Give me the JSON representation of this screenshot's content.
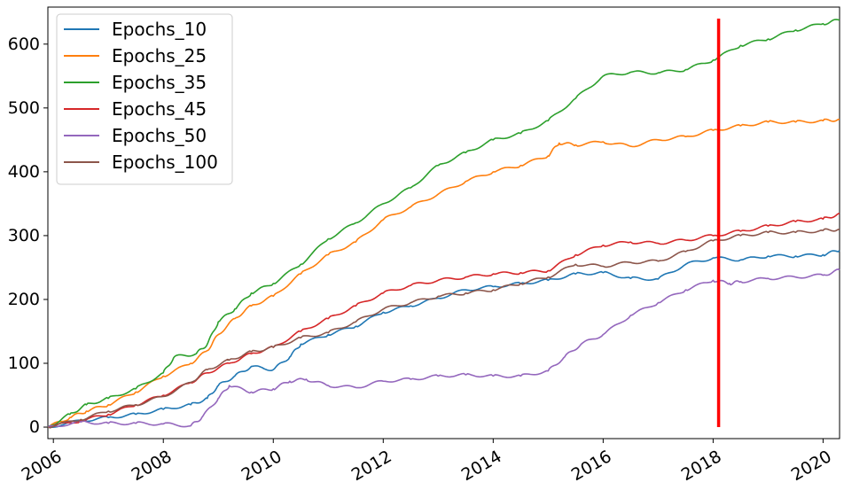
{
  "chart_data": {
    "type": "line",
    "title": "",
    "xlabel": "",
    "ylabel": "",
    "xlim": [
      2005.9,
      2020.3
    ],
    "ylim": [
      -18,
      658
    ],
    "x_ticks": [
      2006,
      2008,
      2010,
      2012,
      2014,
      2016,
      2018,
      2020
    ],
    "x_tick_labels": [
      "2006",
      "2008",
      "2010",
      "2012",
      "2014",
      "2016",
      "2018",
      "2020"
    ],
    "y_ticks": [
      0,
      100,
      200,
      300,
      400,
      500,
      600
    ],
    "y_tick_labels": [
      "0",
      "100",
      "200",
      "300",
      "400",
      "500",
      "600"
    ],
    "grid": false,
    "legend_position": "top-left",
    "series": [
      {
        "name": "Epochs_10",
        "color": "#1f77b4",
        "points": [
          [
            2005.9,
            0
          ],
          [
            2006.5,
            10
          ],
          [
            2007.0,
            15
          ],
          [
            2007.5,
            20
          ],
          [
            2008.0,
            28
          ],
          [
            2008.5,
            35
          ],
          [
            2008.8,
            45
          ],
          [
            2009.0,
            65
          ],
          [
            2009.3,
            80
          ],
          [
            2009.6,
            95
          ],
          [
            2010.0,
            90
          ],
          [
            2010.3,
            110
          ],
          [
            2010.5,
            130
          ],
          [
            2011.0,
            145
          ],
          [
            2011.5,
            158
          ],
          [
            2012.0,
            180
          ],
          [
            2012.5,
            190
          ],
          [
            2013.0,
            202
          ],
          [
            2013.5,
            215
          ],
          [
            2014.0,
            220
          ],
          [
            2014.5,
            225
          ],
          [
            2015.0,
            230
          ],
          [
            2015.5,
            240
          ],
          [
            2016.0,
            242
          ],
          [
            2016.5,
            233
          ],
          [
            2017.0,
            232
          ],
          [
            2017.5,
            255
          ],
          [
            2018.0,
            265
          ],
          [
            2018.5,
            262
          ],
          [
            2019.0,
            268
          ],
          [
            2019.5,
            268
          ],
          [
            2020.0,
            270
          ],
          [
            2020.3,
            277
          ]
        ]
      },
      {
        "name": "Epochs_25",
        "color": "#ff7f0e",
        "points": [
          [
            2005.9,
            0
          ],
          [
            2006.3,
            15
          ],
          [
            2006.6,
            25
          ],
          [
            2007.0,
            35
          ],
          [
            2007.5,
            55
          ],
          [
            2008.0,
            80
          ],
          [
            2008.5,
            100
          ],
          [
            2008.8,
            120
          ],
          [
            2009.0,
            145
          ],
          [
            2009.3,
            170
          ],
          [
            2009.6,
            190
          ],
          [
            2010.0,
            205
          ],
          [
            2010.5,
            240
          ],
          [
            2011.0,
            270
          ],
          [
            2011.5,
            290
          ],
          [
            2012.0,
            325
          ],
          [
            2012.5,
            345
          ],
          [
            2013.0,
            365
          ],
          [
            2013.5,
            385
          ],
          [
            2014.0,
            400
          ],
          [
            2014.5,
            410
          ],
          [
            2015.0,
            425
          ],
          [
            2015.2,
            445
          ],
          [
            2015.5,
            442
          ],
          [
            2016.0,
            447
          ],
          [
            2016.5,
            440
          ],
          [
            2017.0,
            450
          ],
          [
            2017.5,
            455
          ],
          [
            2018.0,
            465
          ],
          [
            2018.5,
            472
          ],
          [
            2019.0,
            478
          ],
          [
            2019.5,
            478
          ],
          [
            2020.0,
            480
          ],
          [
            2020.3,
            482
          ]
        ]
      },
      {
        "name": "Epochs_35",
        "color": "#2ca02c",
        "points": [
          [
            2005.9,
            0
          ],
          [
            2006.3,
            20
          ],
          [
            2006.6,
            35
          ],
          [
            2007.0,
            45
          ],
          [
            2007.5,
            60
          ],
          [
            2008.0,
            85
          ],
          [
            2008.2,
            110
          ],
          [
            2008.6,
            115
          ],
          [
            2008.8,
            130
          ],
          [
            2009.0,
            165
          ],
          [
            2009.3,
            185
          ],
          [
            2009.6,
            210
          ],
          [
            2010.0,
            225
          ],
          [
            2010.5,
            255
          ],
          [
            2011.0,
            295
          ],
          [
            2011.5,
            320
          ],
          [
            2012.0,
            350
          ],
          [
            2012.5,
            375
          ],
          [
            2013.0,
            410
          ],
          [
            2013.5,
            430
          ],
          [
            2014.0,
            450
          ],
          [
            2014.5,
            460
          ],
          [
            2015.0,
            480
          ],
          [
            2015.5,
            515
          ],
          [
            2016.0,
            550
          ],
          [
            2016.5,
            556
          ],
          [
            2017.0,
            555
          ],
          [
            2017.5,
            560
          ],
          [
            2018.0,
            575
          ],
          [
            2018.5,
            598
          ],
          [
            2019.0,
            608
          ],
          [
            2019.5,
            622
          ],
          [
            2020.0,
            632
          ],
          [
            2020.3,
            638
          ]
        ]
      },
      {
        "name": "Epochs_45",
        "color": "#d62728",
        "points": [
          [
            2005.9,
            0
          ],
          [
            2006.5,
            10
          ],
          [
            2007.0,
            20
          ],
          [
            2007.5,
            35
          ],
          [
            2008.0,
            50
          ],
          [
            2008.5,
            70
          ],
          [
            2008.8,
            85
          ],
          [
            2009.2,
            100
          ],
          [
            2009.6,
            115
          ],
          [
            2010.0,
            125
          ],
          [
            2010.5,
            150
          ],
          [
            2011.0,
            170
          ],
          [
            2011.5,
            190
          ],
          [
            2012.0,
            210
          ],
          [
            2012.5,
            222
          ],
          [
            2013.0,
            230
          ],
          [
            2013.5,
            235
          ],
          [
            2014.0,
            240
          ],
          [
            2014.5,
            242
          ],
          [
            2015.0,
            245
          ],
          [
            2015.5,
            270
          ],
          [
            2016.0,
            285
          ],
          [
            2016.5,
            290
          ],
          [
            2017.0,
            288
          ],
          [
            2017.5,
            293
          ],
          [
            2018.0,
            300
          ],
          [
            2018.5,
            307
          ],
          [
            2019.0,
            315
          ],
          [
            2019.5,
            322
          ],
          [
            2020.0,
            326
          ],
          [
            2020.3,
            334
          ]
        ]
      },
      {
        "name": "Epochs_50",
        "color": "#9467bd",
        "points": [
          [
            2005.9,
            0
          ],
          [
            2006.5,
            8
          ],
          [
            2007.0,
            6
          ],
          [
            2007.5,
            6
          ],
          [
            2008.0,
            5
          ],
          [
            2008.5,
            2
          ],
          [
            2008.7,
            15
          ],
          [
            2009.0,
            45
          ],
          [
            2009.2,
            65
          ],
          [
            2009.6,
            55
          ],
          [
            2010.0,
            60
          ],
          [
            2010.3,
            72
          ],
          [
            2010.6,
            75
          ],
          [
            2011.0,
            65
          ],
          [
            2011.5,
            62
          ],
          [
            2012.0,
            72
          ],
          [
            2012.5,
            75
          ],
          [
            2013.0,
            80
          ],
          [
            2013.5,
            82
          ],
          [
            2014.0,
            80
          ],
          [
            2014.5,
            80
          ],
          [
            2015.0,
            88
          ],
          [
            2015.3,
            110
          ],
          [
            2015.6,
            130
          ],
          [
            2016.0,
            145
          ],
          [
            2016.5,
            175
          ],
          [
            2017.0,
            195
          ],
          [
            2017.5,
            215
          ],
          [
            2018.0,
            230
          ],
          [
            2018.3,
            225
          ],
          [
            2018.5,
            228
          ],
          [
            2019.0,
            233
          ],
          [
            2019.5,
            235
          ],
          [
            2020.0,
            238
          ],
          [
            2020.3,
            246
          ]
        ]
      },
      {
        "name": "Epochs_100",
        "color": "#8c564b",
        "points": [
          [
            2005.9,
            0
          ],
          [
            2006.5,
            12
          ],
          [
            2007.0,
            25
          ],
          [
            2007.5,
            35
          ],
          [
            2008.0,
            48
          ],
          [
            2008.5,
            70
          ],
          [
            2008.8,
            90
          ],
          [
            2009.2,
            105
          ],
          [
            2009.6,
            118
          ],
          [
            2010.0,
            125
          ],
          [
            2010.5,
            140
          ],
          [
            2011.0,
            148
          ],
          [
            2011.5,
            165
          ],
          [
            2012.0,
            185
          ],
          [
            2012.5,
            195
          ],
          [
            2013.0,
            205
          ],
          [
            2013.5,
            210
          ],
          [
            2014.0,
            215
          ],
          [
            2014.5,
            225
          ],
          [
            2015.0,
            235
          ],
          [
            2015.5,
            255
          ],
          [
            2016.0,
            252
          ],
          [
            2016.5,
            258
          ],
          [
            2017.0,
            260
          ],
          [
            2017.5,
            275
          ],
          [
            2018.0,
            292
          ],
          [
            2018.5,
            300
          ],
          [
            2019.0,
            305
          ],
          [
            2019.5,
            305
          ],
          [
            2020.0,
            308
          ],
          [
            2020.3,
            310
          ]
        ]
      }
    ],
    "annotations": [
      {
        "type": "vertical-line",
        "x": 2018.1,
        "y_range": [
          0,
          640
        ],
        "color": "#ff0000"
      }
    ]
  }
}
